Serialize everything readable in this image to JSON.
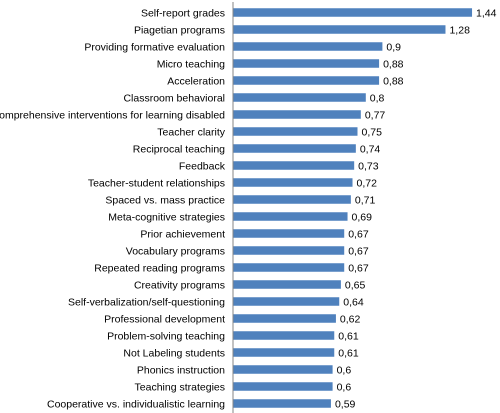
{
  "chart_data": {
    "type": "bar",
    "orientation": "horizontal",
    "categories": [
      "Self-report grades",
      "Piagetian programs",
      "Providing formative evaluation",
      "Micro teaching",
      "Acceleration",
      "Classroom behavioral",
      "Comprehensive interventions for learning disabled",
      "Teacher clarity",
      "Reciprocal teaching",
      "Feedback",
      "Teacher-student relationships",
      "Spaced vs. mass practice",
      "Meta-cognitive strategies",
      "Prior achievement",
      "Vocabulary programs",
      "Repeated reading programs",
      "Creativity programs",
      "Self-verbalization/self-questioning",
      "Professional development",
      "Problem-solving teaching",
      "Not Labeling students",
      "Phonics instruction",
      "Teaching strategies",
      "Cooperative vs. individualistic learning"
    ],
    "values": [
      1.44,
      1.28,
      0.9,
      0.88,
      0.88,
      0.8,
      0.77,
      0.75,
      0.74,
      0.73,
      0.72,
      0.71,
      0.69,
      0.67,
      0.67,
      0.67,
      0.65,
      0.64,
      0.62,
      0.61,
      0.61,
      0.6,
      0.6,
      0.59
    ],
    "value_labels": [
      "1,44",
      "1,28",
      "0,9",
      "0,88",
      "0,88",
      "0,8",
      "0,77",
      "0,75",
      "0,74",
      "0,73",
      "0,72",
      "0,71",
      "0,69",
      "0,67",
      "0,67",
      "0,67",
      "0,65",
      "0,64",
      "0,62",
      "0,61",
      "0,61",
      "0,6",
      "0,6",
      "0,59"
    ],
    "title": "",
    "xlabel": "",
    "ylabel": "",
    "xlim": [
      0,
      1.5
    ],
    "grid": false,
    "legend": "none",
    "bar_color": "#4F81BD",
    "axis_color": "#868686"
  }
}
